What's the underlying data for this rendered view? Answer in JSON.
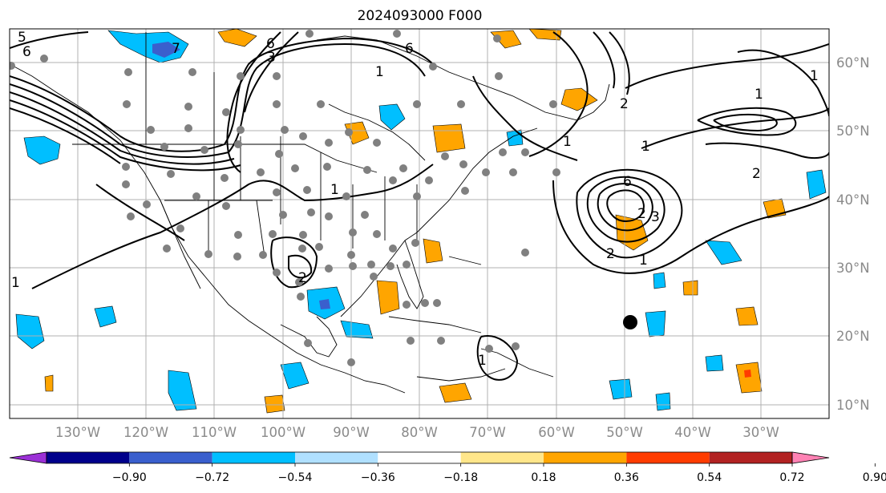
{
  "title": "2024093000 F000",
  "lon_labels": [
    "130°W",
    "120°W",
    "110°W",
    "100°W",
    "90°W",
    "80°W",
    "70°W",
    "60°W",
    "50°W",
    "40°W",
    "30°W"
  ],
  "lat_labels": [
    "60°N",
    "50°N",
    "40°N",
    "30°N",
    "20°N",
    "10°N"
  ],
  "colorbar": {
    "ticks": [
      "−0.90",
      "−0.72",
      "−0.54",
      "−0.36",
      "−0.18",
      "0.18",
      "0.36",
      "0.54",
      "0.72",
      "0.90"
    ],
    "colors": [
      "#9b30d6",
      "#00008b",
      "#3a5fcd",
      "#00bfff",
      "#b0e0ff",
      "#ffffff",
      "#ffe68a",
      "#ffa500",
      "#ff3c00",
      "#b22222",
      "#ff82b4"
    ]
  },
  "contour_labels": [
    "6",
    "6",
    "3",
    "6",
    "1",
    "1",
    "2",
    "1",
    "1",
    "2",
    "2",
    "1",
    "6",
    "2",
    "3",
    "1",
    "1",
    "2",
    "1",
    "1",
    "5",
    "7"
  ],
  "marker": {
    "name": "large black dot",
    "color": "#000000"
  },
  "station_marker_color": "#808080"
}
